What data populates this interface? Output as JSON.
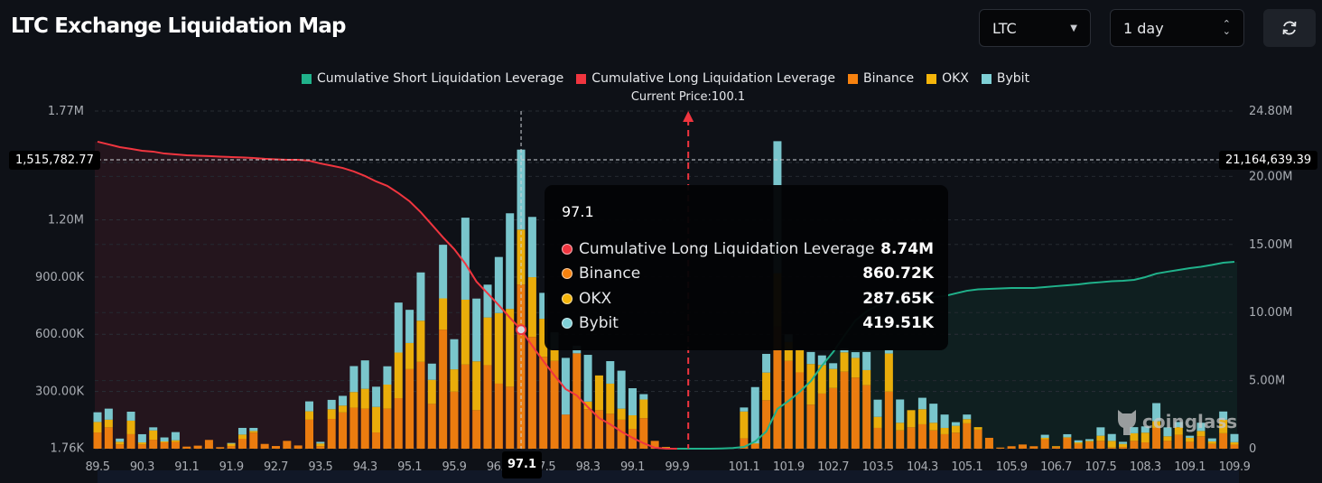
{
  "header": {
    "title": "LTC Exchange Liquidation Map",
    "symbol_select": "LTC",
    "range_select": "1 day",
    "refresh_icon": "refresh-icon"
  },
  "legend": [
    {
      "label": "Cumulative Short Liquidation Leverage",
      "color": "#20b28b"
    },
    {
      "label": "Cumulative Long Liquidation Leverage",
      "color": "#f0353f"
    },
    {
      "label": "Binance",
      "color": "#f7820f"
    },
    {
      "label": "OKX",
      "color": "#f5b50a"
    },
    {
      "label": "Bybit",
      "color": "#7fd0d6"
    }
  ],
  "current_price_label": "Current Price:100.1",
  "crosshair": {
    "x_label": "97.1",
    "left_label": "1,515,782.77",
    "right_label": "21,164,639.39"
  },
  "tooltip": {
    "title": "97.1",
    "rows": [
      {
        "label": "Cumulative Long Liquidation Leverage",
        "value": "8.74M",
        "color": "#f0353f"
      },
      {
        "label": "Binance",
        "value": "860.72K",
        "color": "#f7820f"
      },
      {
        "label": "OKX",
        "value": "287.65K",
        "color": "#f5b50a"
      },
      {
        "label": "Bybit",
        "value": "419.51K",
        "color": "#7fd0d6"
      }
    ]
  },
  "watermark": "coinglass",
  "chart_data": {
    "type": "bar",
    "stacked": true,
    "current_price": 100.1,
    "crosshair_price": 97.1,
    "grid": true,
    "legend_position": "top-center",
    "left_axis": {
      "ticks": [
        "1.76K",
        "300.00K",
        "600.00K",
        "900.00K",
        "1.20M",
        "1.77M"
      ],
      "tick_values": [
        1760,
        300000,
        600000,
        900000,
        1200000,
        1770000
      ],
      "range": [
        0,
        1770000
      ]
    },
    "right_axis": {
      "ticks": [
        "0",
        "5.00M",
        "10.00M",
        "15.00M",
        "20.00M",
        "24.80M"
      ],
      "tick_values": [
        0,
        5000000,
        10000000,
        15000000,
        20000000,
        24800000
      ],
      "range": [
        0,
        24800000
      ]
    },
    "x_ticks": [
      "89.5",
      "90.3",
      "91.1",
      "91.9",
      "92.7",
      "93.5",
      "94.3",
      "95.1",
      "95.9",
      "96.7",
      "97.5",
      "98.3",
      "99.1",
      "99.9",
      "101.1",
      "101.9",
      "102.7",
      "103.5",
      "104.3",
      "105.1",
      "105.9",
      "106.7",
      "107.5",
      "108.3",
      "109.1",
      "109.9"
    ],
    "categories": [
      89.5,
      89.7,
      89.9,
      90.1,
      90.3,
      90.5,
      90.7,
      90.9,
      91.1,
      91.3,
      91.5,
      91.7,
      91.9,
      92.1,
      92.3,
      92.5,
      92.7,
      92.9,
      93.1,
      93.3,
      93.5,
      93.7,
      93.9,
      94.1,
      94.3,
      94.5,
      94.7,
      94.9,
      95.1,
      95.3,
      95.5,
      95.7,
      95.9,
      96.1,
      96.3,
      96.5,
      96.7,
      96.9,
      97.1,
      97.3,
      97.5,
      97.7,
      97.9,
      98.1,
      98.3,
      98.5,
      98.7,
      98.9,
      99.1,
      99.3,
      99.5,
      99.7,
      99.9,
      100.1,
      100.3,
      100.5,
      100.7,
      100.9,
      101.1,
      101.3,
      101.5,
      101.7,
      101.9,
      102.1,
      102.3,
      102.5,
      102.7,
      102.9,
      103.1,
      103.3,
      103.5,
      103.7,
      103.9,
      104.1,
      104.3,
      104.5,
      104.7,
      104.9,
      105.1,
      105.3,
      105.5,
      105.7,
      105.9,
      106.1,
      106.3,
      106.5,
      106.7,
      106.9,
      107.1,
      107.3,
      107.5,
      107.7,
      107.9,
      108.1,
      108.3,
      108.5,
      108.7,
      108.9,
      109.1,
      109.3,
      109.5,
      109.7,
      109.9
    ],
    "series": [
      {
        "name": "Binance",
        "axis": "left",
        "color": "#f7820f",
        "values": [
          85000,
          112000,
          22000,
          76000,
          22000,
          47000,
          33000,
          35000,
          11000,
          16000,
          46000,
          8000,
          14000,
          52000,
          84000,
          25000,
          14000,
          41000,
          17000,
          152000,
          13000,
          156000,
          190000,
          215000,
          210000,
          85000,
          210000,
          265000,
          417000,
          455000,
          235000,
          624000,
          299000,
          441000,
          202000,
          438000,
          341000,
          325000,
          860720,
          586000,
          482000,
          460000,
          179000,
          500000,
          207000,
          202000,
          183000,
          152000,
          104000,
          160000,
          41000,
          6000,
          0,
          0,
          0,
          0,
          0,
          0,
          54000,
          25000,
          254000,
          640000,
          460000,
          400000,
          231000,
          289000,
          318000,
          404000,
          373000,
          333000,
          109000,
          299000,
          96000,
          112000,
          128000,
          96000,
          76000,
          84000,
          133000,
          100000,
          57000,
          6000,
          13000,
          22000,
          13000,
          49000,
          9000,
          57000,
          25000,
          36000,
          41000,
          6000,
          9000,
          41000,
          33000,
          109000,
          41000,
          73000,
          36000,
          65000,
          25000,
          81000,
          21000
        ]
      },
      {
        "name": "OKX",
        "axis": "left",
        "color": "#f5b50a",
        "values": [
          55000,
          40000,
          14000,
          71000,
          11000,
          49000,
          5000,
          9000,
          0,
          0,
          0,
          0,
          13000,
          22000,
          9000,
          0,
          0,
          0,
          0,
          44000,
          14000,
          51000,
          36000,
          82000,
          104000,
          134000,
          126000,
          239000,
          137000,
          216000,
          126000,
          164000,
          117000,
          340000,
          256000,
          250000,
          370000,
          408000,
          287650,
          313000,
          199000,
          60000,
          0,
          0,
          40000,
          182000,
          158000,
          58000,
          71000,
          98000,
          0,
          3000,
          0,
          0,
          0,
          0,
          0,
          0,
          141000,
          3000,
          145000,
          280000,
          100000,
          120000,
          213000,
          150000,
          100000,
          101000,
          103000,
          79000,
          58000,
          200000,
          40000,
          90000,
          79000,
          40000,
          33000,
          36000,
          22000,
          13000,
          0,
          0,
          0,
          0,
          0,
          8000,
          4000,
          3000,
          8000,
          5000,
          27000,
          35000,
          16000,
          40000,
          51000,
          35000,
          24000,
          40000,
          21000,
          28000,
          13000,
          71000,
          13000
        ]
      },
      {
        "name": "Bybit",
        "axis": "left",
        "color": "#7fd0d6",
        "values": [
          51000,
          58000,
          17000,
          47000,
          43000,
          16000,
          21000,
          43000,
          0,
          0,
          0,
          0,
          3000,
          35000,
          16000,
          0,
          0,
          0,
          0,
          52000,
          9000,
          49000,
          51000,
          136000,
          149000,
          106000,
          96000,
          262000,
          174000,
          253000,
          85000,
          281000,
          158000,
          430000,
          329000,
          172000,
          294000,
          501000,
          419510,
          316000,
          136000,
          90000,
          297000,
          40000,
          245000,
          0,
          118000,
          199000,
          142000,
          28000,
          0,
          0,
          0,
          0,
          0,
          0,
          0,
          0,
          21000,
          295000,
          98000,
          692000,
          40000,
          0,
          63000,
          50000,
          30000,
          20000,
          30000,
          95000,
          90000,
          20000,
          122000,
          0,
          60000,
          100000,
          70000,
          19000,
          24000,
          0,
          0,
          0,
          0,
          0,
          0,
          16000,
          0,
          16000,
          11000,
          9000,
          44000,
          36000,
          11000,
          32000,
          33000,
          95000,
          47000,
          27000,
          11000,
          43000,
          16000,
          43000,
          43000
        ]
      },
      {
        "name": "Cumulative Long Liquidation Leverage",
        "type": "line",
        "axis": "right",
        "color": "#f0353f",
        "values": [
          22550000,
          22350000,
          22150000,
          22020000,
          21880000,
          21820000,
          21680000,
          21620000,
          21550000,
          21520000,
          21490000,
          21450000,
          21420000,
          21390000,
          21350000,
          21290000,
          21250000,
          21220000,
          21220000,
          21150000,
          20950000,
          20790000,
          20620000,
          20360000,
          20030000,
          19630000,
          19300000,
          18770000,
          18170000,
          17370000,
          16450000,
          15520000,
          14660000,
          13590000,
          12270000,
          11410000,
          10540000,
          9620000,
          8740000,
          7560000,
          6430000,
          5370000,
          4380000,
          3910000,
          3050000,
          2250000,
          1790000,
          1260000,
          800000,
          400000,
          70000,
          10000,
          0,
          null,
          null,
          null,
          null,
          null,
          null,
          null,
          null,
          null,
          null,
          null,
          null,
          null,
          null,
          null,
          null,
          null,
          null,
          null,
          null,
          null,
          null,
          null,
          null,
          null,
          null,
          null,
          null,
          null,
          null,
          null,
          null,
          null,
          null,
          null,
          null,
          null,
          null,
          null,
          null,
          null,
          null,
          null,
          null,
          null,
          null,
          null,
          null,
          null,
          null
        ]
      },
      {
        "name": "Cumulative Short Liquidation Leverage",
        "type": "line",
        "axis": "right",
        "color": "#20b28b",
        "values": [
          null,
          null,
          null,
          null,
          null,
          null,
          null,
          null,
          null,
          null,
          null,
          null,
          null,
          null,
          null,
          null,
          null,
          null,
          null,
          null,
          null,
          null,
          null,
          null,
          null,
          null,
          null,
          null,
          null,
          null,
          null,
          null,
          null,
          null,
          null,
          null,
          null,
          null,
          null,
          null,
          null,
          null,
          null,
          null,
          null,
          null,
          null,
          null,
          null,
          null,
          null,
          null,
          0,
          0,
          0,
          0,
          20000,
          50000,
          130000,
          530000,
          1260000,
          2920000,
          3510000,
          4180000,
          4970000,
          6100000,
          7100000,
          8290000,
          9420000,
          10080000,
          10540000,
          10810000,
          10940000,
          11010000,
          11070000,
          11140000,
          11210000,
          11410000,
          11600000,
          11700000,
          11740000,
          11770000,
          11800000,
          11800000,
          11800000,
          11870000,
          11940000,
          12000000,
          12070000,
          12170000,
          12230000,
          12300000,
          12330000,
          12400000,
          12600000,
          12860000,
          13000000,
          13130000,
          13260000,
          13360000,
          13500000,
          13660000,
          13730000
        ]
      }
    ]
  }
}
